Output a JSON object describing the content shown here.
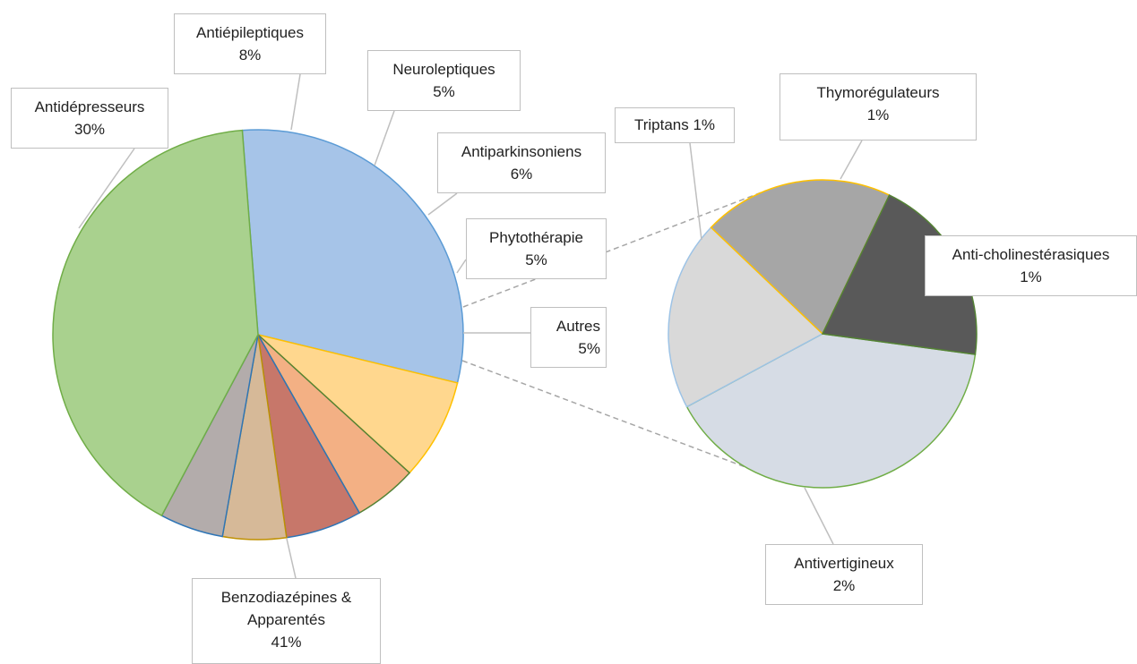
{
  "chart_data": [
    {
      "type": "pie",
      "categories": [
        "Antidépresseurs",
        "Antiépileptiques",
        "Neuroleptiques",
        "Antiparkinsoniens",
        "Phytothérapie",
        "Autres",
        "Benzodiazépines & Apparentés"
      ],
      "values": [
        30,
        8,
        5,
        6,
        5,
        5,
        41
      ],
      "value_labels": [
        "30%",
        "8%",
        "5%",
        "6%",
        "5%",
        "5%",
        "41%"
      ],
      "colors": [
        "#a6c4e8",
        "#ffd78e",
        "#f3b084",
        "#c7776a",
        "#d6b998",
        "#b3acab",
        "#a9d18e"
      ],
      "edge_colors": [
        "#5b9bd5",
        "#ffc000",
        "#548235",
        "#2e75b6",
        "#bf9000",
        "#2e75b6",
        "#70ad47"
      ]
    },
    {
      "type": "pie",
      "categories": [
        "Antivertigineux",
        "Triptans",
        "Thymorégulateurs",
        "Anti-cholinestérasiques"
      ],
      "values": [
        2,
        1,
        1,
        1
      ],
      "value_labels": [
        "2%",
        "1%",
        "1%",
        "1%"
      ],
      "colors": [
        "#d6dce5",
        "#d9d9d9",
        "#a6a6a6",
        "#595959"
      ],
      "edge_colors": [
        "#70ad47",
        "#9dc3e6",
        "#ffc000",
        "#548235"
      ]
    }
  ]
}
